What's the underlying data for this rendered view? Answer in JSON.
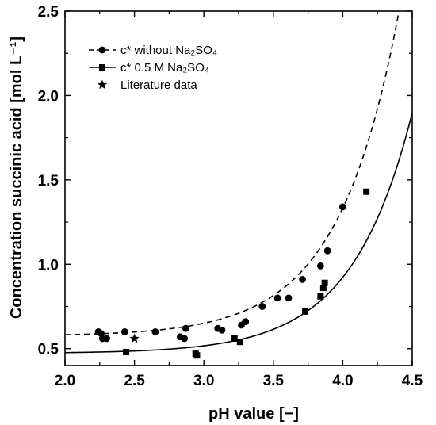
{
  "chart_data": {
    "type": "scatter",
    "xlabel": "pH value [−]",
    "ylabel": "Concentration succinic acid [mol L⁻¹]",
    "xlim": [
      2.0,
      4.5
    ],
    "ylim": [
      0.4,
      2.5
    ],
    "xticks": [
      "2.0",
      "2.5",
      "3.0",
      "3.5",
      "4.0",
      "4.5"
    ],
    "yticks": [
      "0.5",
      "1.0",
      "1.5",
      "2.0",
      "2.5"
    ],
    "legend_placement": "top-left",
    "series": [
      {
        "name": "c* without Na₂SO₄",
        "marker": "circle",
        "line": "dashed",
        "color": "#000000",
        "points": [
          {
            "x": 2.24,
            "y": 0.6
          },
          {
            "x": 2.26,
            "y": 0.59
          },
          {
            "x": 2.27,
            "y": 0.56
          },
          {
            "x": 2.3,
            "y": 0.56
          },
          {
            "x": 2.43,
            "y": 0.6
          },
          {
            "x": 2.65,
            "y": 0.6
          },
          {
            "x": 2.83,
            "y": 0.57
          },
          {
            "x": 2.86,
            "y": 0.56
          },
          {
            "x": 2.87,
            "y": 0.62
          },
          {
            "x": 3.1,
            "y": 0.62
          },
          {
            "x": 3.13,
            "y": 0.61
          },
          {
            "x": 3.27,
            "y": 0.64
          },
          {
            "x": 3.3,
            "y": 0.66
          },
          {
            "x": 3.42,
            "y": 0.75
          },
          {
            "x": 3.53,
            "y": 0.8
          },
          {
            "x": 3.61,
            "y": 0.8
          },
          {
            "x": 3.71,
            "y": 0.91
          },
          {
            "x": 3.84,
            "y": 0.99
          },
          {
            "x": 3.89,
            "y": 1.08
          },
          {
            "x": 4.0,
            "y": 1.34
          }
        ]
      },
      {
        "name": "c* 0.5 M Na₂SO₄",
        "marker": "square",
        "line": "solid",
        "color": "#000000",
        "points": [
          {
            "x": 2.44,
            "y": 0.48
          },
          {
            "x": 2.94,
            "y": 0.47
          },
          {
            "x": 2.95,
            "y": 0.46
          },
          {
            "x": 3.22,
            "y": 0.56
          },
          {
            "x": 3.26,
            "y": 0.54
          },
          {
            "x": 3.73,
            "y": 0.72
          },
          {
            "x": 3.84,
            "y": 0.81
          },
          {
            "x": 3.86,
            "y": 0.86
          },
          {
            "x": 3.87,
            "y": 0.89
          },
          {
            "x": 4.17,
            "y": 1.43
          }
        ]
      },
      {
        "name": "Literature data",
        "marker": "star",
        "line": "none",
        "color": "#000000",
        "points": [
          {
            "x": 2.5,
            "y": 0.56
          }
        ]
      }
    ]
  }
}
